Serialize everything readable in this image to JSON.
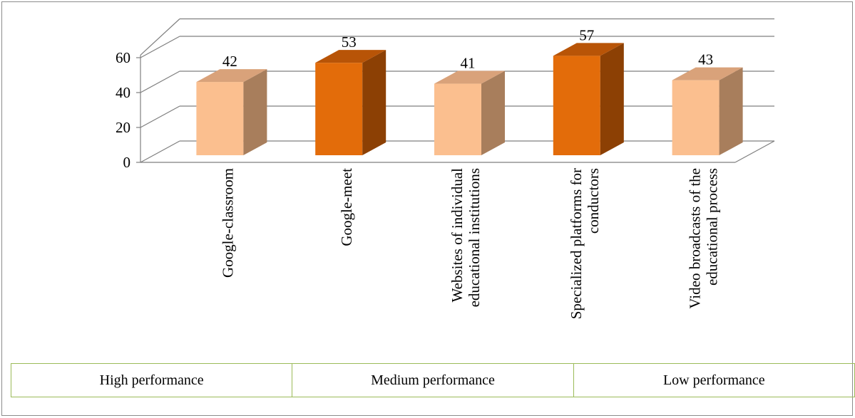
{
  "chart_data": {
    "type": "bar",
    "categories": [
      "Google-classroom",
      "Google-meet",
      "Websites of individual educational institutions",
      "Specialized platforms for conductors",
      "Video broadcasts of the educational process"
    ],
    "category_lines": [
      [
        "Google-classroom"
      ],
      [
        "Google-meet"
      ],
      [
        "Websites of individual",
        "educational institutions"
      ],
      [
        "Specialized platforms for",
        "conductors"
      ],
      [
        "Video broadcasts of the",
        "educational process"
      ]
    ],
    "values": [
      42,
      53,
      41,
      57,
      43
    ],
    "ylim": [
      0,
      60
    ],
    "yticks": [
      0,
      20,
      40,
      60
    ],
    "grid": true,
    "three_d": true,
    "colors": {
      "light_front": "#fbbf8f",
      "light_side": "#a87e5c",
      "light_top": "#d9a27a",
      "dark_front": "#e36c0a",
      "dark_side": "#8c4004",
      "dark_top": "#b85407",
      "grid": "#7f7f7f"
    },
    "bar_styles": [
      "light",
      "dark",
      "light",
      "dark",
      "light"
    ]
  },
  "legend_table": {
    "cells": [
      "High performance",
      "Medium performance",
      "Low performance"
    ],
    "border_color": "#9bbb59"
  }
}
